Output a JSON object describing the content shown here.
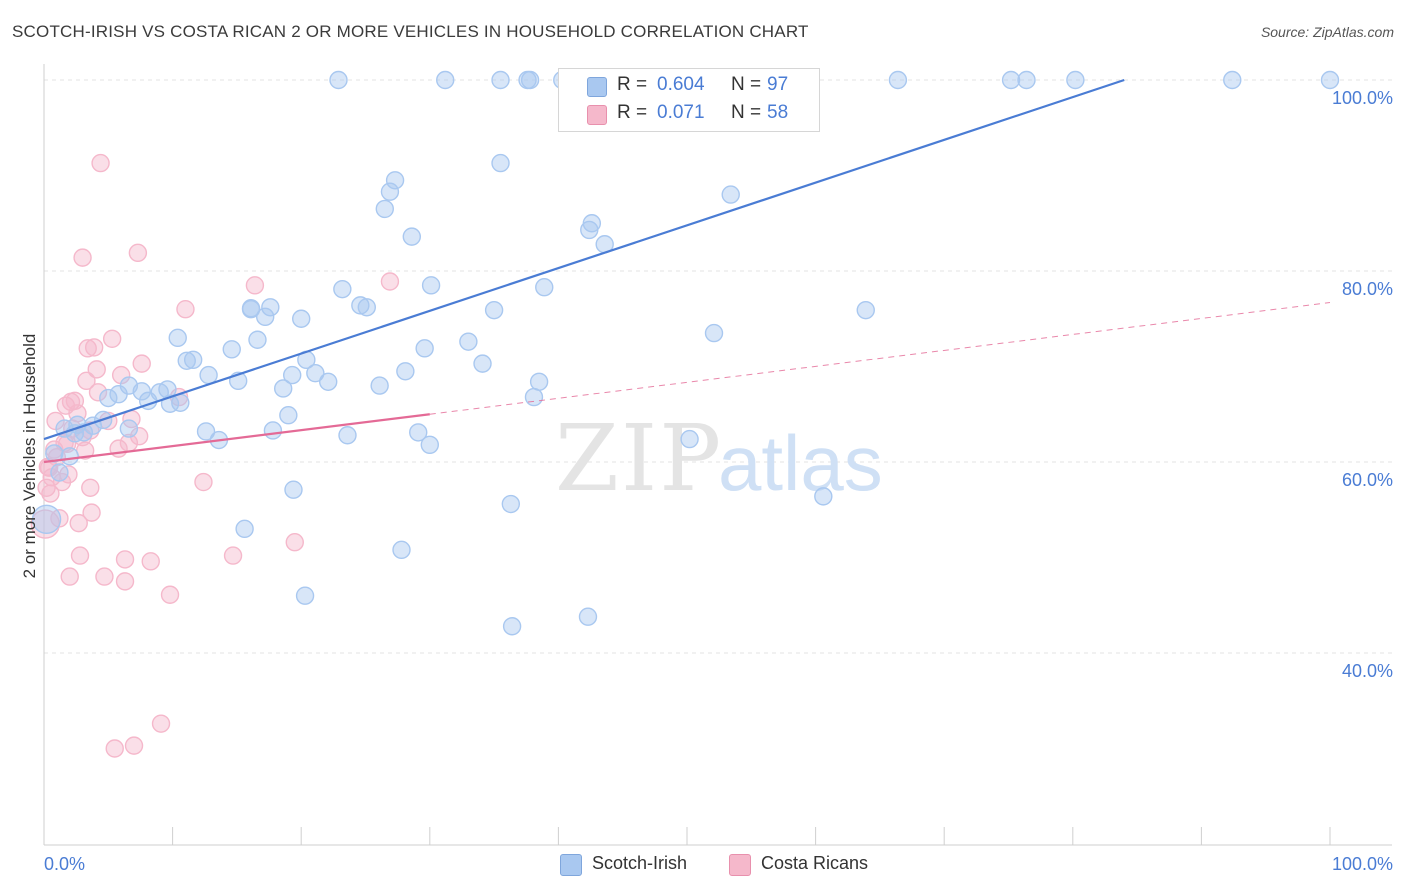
{
  "header": {
    "title": "SCOTCH-IRISH VS COSTA RICAN 2 OR MORE VEHICLES IN HOUSEHOLD CORRELATION CHART",
    "source": "Source: ZipAtlas.com"
  },
  "watermark": {
    "zip": "ZIP",
    "atlas": "atlas"
  },
  "legend_top": {
    "rows": [
      {
        "r_label": "R =",
        "r_value": "0.604",
        "n_label": "N =",
        "n_value": "97",
        "color": "#a9c8f0"
      },
      {
        "r_label": "R =",
        "r_value": "0.071",
        "n_label": "N =",
        "n_value": "58",
        "color": "#f5b8cb"
      }
    ]
  },
  "bottom_legend": {
    "items": [
      {
        "label": "Scotch-Irish",
        "color": "#a9c8f0"
      },
      {
        "label": "Costa Ricans",
        "color": "#f5b8cb"
      }
    ]
  },
  "chart_data": {
    "type": "scatter",
    "title": "SCOTCH-IRISH VS COSTA RICAN 2 OR MORE VEHICLES IN HOUSEHOLD CORRELATION CHART",
    "xlabel": "",
    "ylabel": "2 or more Vehicles in Household",
    "xlim": [
      0,
      100
    ],
    "ylim": [
      19,
      102
    ],
    "x_tick_labels": [
      "0.0%",
      "100.0%"
    ],
    "y_ticks": [
      40,
      60,
      80,
      100
    ],
    "y_tick_labels": [
      "40.0%",
      "60.0%",
      "80.0%",
      "100.0%"
    ],
    "grid": true,
    "legend_position": "top-center",
    "series": [
      {
        "name": "Scotch-Irish",
        "color": "#4a7cd4",
        "fill": "#a9c8f0",
        "trend": {
          "x": [
            0,
            84
          ],
          "y": [
            62.4,
            100
          ]
        },
        "points": [
          [
            1.2,
            58.9
          ],
          [
            2,
            60.6
          ],
          [
            0.8,
            60.9
          ],
          [
            2.4,
            63
          ],
          [
            3.1,
            63.1
          ],
          [
            1.6,
            63.5
          ],
          [
            2.6,
            63.9
          ],
          [
            4.6,
            64.4
          ],
          [
            3.8,
            63.8
          ],
          [
            6.6,
            63.5
          ],
          [
            5,
            66.7
          ],
          [
            5.8,
            67.1
          ],
          [
            6.6,
            68
          ],
          [
            7.6,
            67.4
          ],
          [
            8.1,
            66.4
          ],
          [
            9,
            67.3
          ],
          [
            9.6,
            67.6
          ],
          [
            9.8,
            66.1
          ],
          [
            10.6,
            66.2
          ],
          [
            10.4,
            73
          ],
          [
            11.6,
            70.7
          ],
          [
            11.1,
            70.6
          ],
          [
            12.8,
            69.1
          ],
          [
            12.6,
            63.2
          ],
          [
            13.6,
            62.3
          ],
          [
            14.6,
            71.8
          ],
          [
            15.1,
            68.5
          ],
          [
            15.6,
            53
          ],
          [
            16.1,
            76.1
          ],
          [
            16.1,
            76
          ],
          [
            16.6,
            72.8
          ],
          [
            17.2,
            75.2
          ],
          [
            17.6,
            76.2
          ],
          [
            17.8,
            63.3
          ],
          [
            18.6,
            67.7
          ],
          [
            19,
            64.9
          ],
          [
            19.3,
            69.1
          ],
          [
            19.4,
            57.1
          ],
          [
            20,
            75
          ],
          [
            20.3,
            46
          ],
          [
            20.4,
            70.7
          ],
          [
            21.1,
            69.3
          ],
          [
            22.1,
            68.4
          ],
          [
            23.2,
            78.1
          ],
          [
            23.6,
            62.8
          ],
          [
            24.6,
            76.4
          ],
          [
            25.1,
            76.2
          ],
          [
            26.1,
            68
          ],
          [
            26.5,
            86.5
          ],
          [
            26.9,
            88.3
          ],
          [
            27.3,
            89.5
          ],
          [
            27.8,
            50.8
          ],
          [
            28.1,
            69.5
          ],
          [
            28.6,
            83.6
          ],
          [
            29.1,
            63.1
          ],
          [
            29.6,
            71.9
          ],
          [
            30,
            61.8
          ],
          [
            30.1,
            78.5
          ],
          [
            33,
            72.6
          ],
          [
            34.1,
            70.3
          ],
          [
            35,
            75.9
          ],
          [
            35.5,
            91.3
          ],
          [
            36.3,
            55.6
          ],
          [
            36.4,
            42.8
          ],
          [
            38.1,
            66.8
          ],
          [
            38.5,
            68.4
          ],
          [
            38.9,
            78.3
          ],
          [
            42.4,
            84.3
          ],
          [
            42.6,
            85
          ],
          [
            43.6,
            82.8
          ],
          [
            42.3,
            43.8
          ],
          [
            50.2,
            62.4
          ],
          [
            52.1,
            73.5
          ],
          [
            53.4,
            88
          ],
          [
            60.6,
            56.4
          ],
          [
            63.9,
            75.9
          ],
          [
            22.9,
            100
          ],
          [
            31.2,
            100
          ],
          [
            35.5,
            100
          ],
          [
            37.6,
            100
          ],
          [
            37.8,
            100
          ],
          [
            40.3,
            100
          ],
          [
            40.7,
            100
          ],
          [
            42.2,
            100
          ],
          [
            44.6,
            100
          ],
          [
            47.5,
            100
          ],
          [
            48.4,
            100
          ],
          [
            52,
            100
          ],
          [
            56.9,
            100
          ],
          [
            59.3,
            100
          ],
          [
            66.4,
            100
          ],
          [
            75.2,
            100
          ],
          [
            76.4,
            100
          ],
          [
            80.2,
            100
          ],
          [
            92.4,
            100
          ],
          [
            100,
            100
          ],
          [
            0.2,
            54
          ]
        ]
      },
      {
        "name": "Costa Ricans",
        "color": "#e46a96",
        "fill": "#f5b8cb",
        "trend": {
          "x": [
            0,
            30
          ],
          "y": [
            60,
            65
          ]
        },
        "trend_dashed": {
          "x": [
            30,
            100
          ],
          "y": [
            65,
            76.7
          ]
        },
        "points": [
          [
            0.2,
            57.3
          ],
          [
            0.4,
            59.4
          ],
          [
            0.5,
            56.7
          ],
          [
            0.6,
            58.4
          ],
          [
            0.8,
            61.3
          ],
          [
            0.9,
            64.3
          ],
          [
            1,
            60.5
          ],
          [
            1.2,
            54.1
          ],
          [
            1.4,
            57.9
          ],
          [
            1.6,
            62
          ],
          [
            1.7,
            65.9
          ],
          [
            1.8,
            61.9
          ],
          [
            1.9,
            58.7
          ],
          [
            2,
            48
          ],
          [
            2.1,
            66.3
          ],
          [
            2.2,
            63.5
          ],
          [
            2.4,
            66.4
          ],
          [
            2.6,
            65.1
          ],
          [
            2.7,
            53.6
          ],
          [
            2.8,
            50.2
          ],
          [
            3,
            62.6
          ],
          [
            3,
            81.4
          ],
          [
            3.2,
            61.2
          ],
          [
            3.3,
            68.5
          ],
          [
            3.4,
            71.9
          ],
          [
            3.6,
            63.3
          ],
          [
            3.6,
            57.3
          ],
          [
            3.7,
            54.7
          ],
          [
            3.9,
            72
          ],
          [
            4.1,
            69.7
          ],
          [
            4.2,
            67.3
          ],
          [
            4.4,
            91.3
          ],
          [
            4.7,
            48
          ],
          [
            5,
            64.3
          ],
          [
            5.3,
            72.9
          ],
          [
            5.5,
            30
          ],
          [
            5.8,
            61.4
          ],
          [
            6,
            69.1
          ],
          [
            6.3,
            49.8
          ],
          [
            6.3,
            47.5
          ],
          [
            6.6,
            62
          ],
          [
            6.8,
            64.5
          ],
          [
            7,
            30.3
          ],
          [
            7.4,
            62.7
          ],
          [
            7.6,
            70.3
          ],
          [
            7.3,
            81.9
          ],
          [
            8.3,
            49.6
          ],
          [
            9.1,
            32.6
          ],
          [
            9.8,
            46.1
          ],
          [
            10.5,
            66.8
          ],
          [
            11,
            76
          ],
          [
            12.4,
            57.9
          ],
          [
            14.7,
            50.2
          ],
          [
            16.4,
            78.5
          ],
          [
            19.5,
            51.6
          ],
          [
            26.9,
            78.9
          ],
          [
            0.1,
            53.5
          ],
          [
            0.3,
            59.5
          ]
        ]
      }
    ]
  }
}
